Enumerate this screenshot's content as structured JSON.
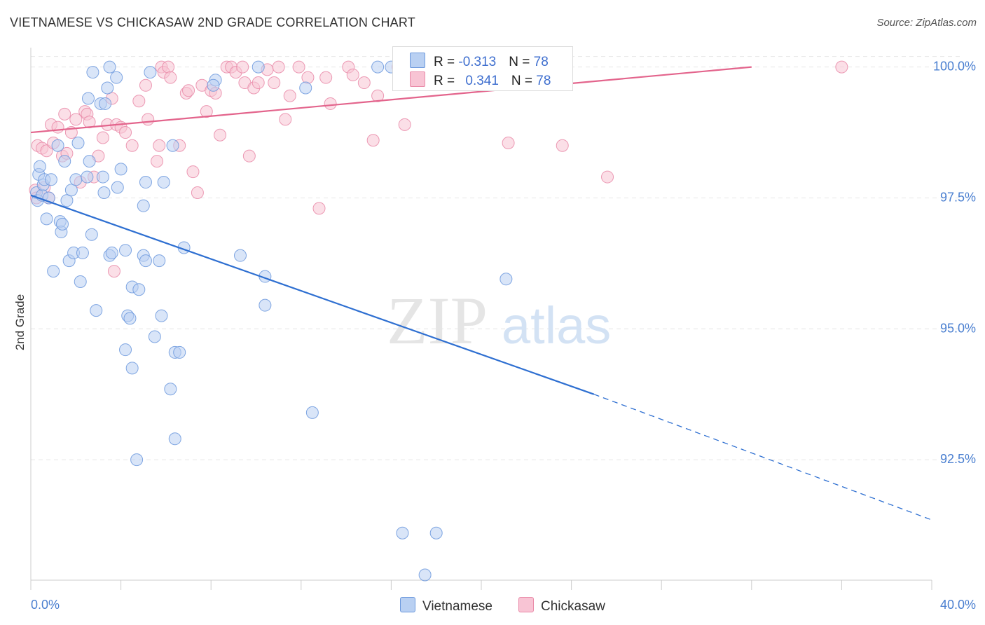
{
  "title": "VIETNAMESE VS CHICKASAW 2ND GRADE CORRELATION CHART",
  "source": "Source: ZipAtlas.com",
  "watermark": {
    "zip": "ZIP",
    "atlas": "atlas"
  },
  "colors": {
    "vietnamese_fill": "#b9d0f2",
    "vietnamese_stroke": "#6b98dd",
    "vietnamese_line": "#2e6fd1",
    "chickasaw_fill": "#f8c4d4",
    "chickasaw_stroke": "#e98aa8",
    "chickasaw_line": "#e3648c",
    "grid": "#e6e6e6",
    "tick_label": "#4a7fd0"
  },
  "legend": {
    "rows": [
      {
        "r_label": "R = ",
        "r_value": "-0.313",
        "n_label": "N = ",
        "n_value": "78"
      },
      {
        "r_label": "R = ",
        "r_value": "0.341",
        "n_label": "N = ",
        "n_value": "78"
      }
    ]
  },
  "bottom_legend": {
    "series1": "Vietnamese",
    "series2": "Chickasaw"
  },
  "chart_data": {
    "type": "scatter",
    "xlabel": "",
    "ylabel": "2nd Grade",
    "xlim": [
      0,
      40
    ],
    "ylim": [
      90.2,
      100.45
    ],
    "x_tick_labels": [
      "0.0%",
      "40.0%"
    ],
    "y_ticks": [
      92.5,
      95.0,
      97.5,
      100.0
    ],
    "y_tick_labels": [
      "92.5%",
      "95.0%",
      "97.5%",
      "100.0%"
    ],
    "grid": "horizontal dashed",
    "legend_position": "top-center",
    "series": [
      {
        "name": "Vietnamese",
        "points": [
          [
            0.25,
            97.6
          ],
          [
            0.3,
            97.45
          ],
          [
            0.35,
            97.95
          ],
          [
            0.5,
            97.55
          ],
          [
            0.55,
            97.75
          ],
          [
            0.4,
            98.1
          ],
          [
            0.6,
            97.85
          ],
          [
            0.7,
            97.1
          ],
          [
            0.8,
            97.5
          ],
          [
            0.9,
            97.85
          ],
          [
            1.0,
            96.1
          ],
          [
            1.2,
            98.5
          ],
          [
            1.3,
            97.05
          ],
          [
            1.35,
            96.85
          ],
          [
            1.4,
            97.0
          ],
          [
            1.5,
            98.2
          ],
          [
            1.6,
            97.45
          ],
          [
            1.7,
            96.3
          ],
          [
            1.8,
            97.65
          ],
          [
            1.9,
            96.45
          ],
          [
            2.0,
            97.85
          ],
          [
            2.1,
            98.55
          ],
          [
            2.2,
            95.9
          ],
          [
            2.3,
            96.45
          ],
          [
            2.5,
            97.9
          ],
          [
            2.55,
            99.4
          ],
          [
            2.6,
            98.2
          ],
          [
            2.7,
            96.8
          ],
          [
            2.75,
            99.9
          ],
          [
            2.9,
            95.35
          ],
          [
            3.1,
            99.3
          ],
          [
            3.2,
            97.9
          ],
          [
            3.25,
            97.6
          ],
          [
            3.3,
            99.3
          ],
          [
            3.5,
            96.4
          ],
          [
            3.4,
            99.6
          ],
          [
            3.5,
            100.0
          ],
          [
            3.6,
            96.45
          ],
          [
            3.8,
            99.8
          ],
          [
            3.85,
            97.7
          ],
          [
            4.0,
            98.05
          ],
          [
            4.2,
            94.6
          ],
          [
            4.2,
            96.5
          ],
          [
            4.3,
            95.25
          ],
          [
            4.4,
            95.2
          ],
          [
            4.5,
            95.8
          ],
          [
            4.5,
            94.25
          ],
          [
            4.7,
            92.5
          ],
          [
            4.8,
            95.75
          ],
          [
            5.0,
            97.35
          ],
          [
            5.0,
            96.4
          ],
          [
            5.1,
            96.3
          ],
          [
            5.3,
            99.9
          ],
          [
            5.1,
            97.8
          ],
          [
            5.5,
            94.85
          ],
          [
            5.7,
            96.3
          ],
          [
            5.8,
            95.25
          ],
          [
            5.9,
            97.8
          ],
          [
            6.2,
            93.85
          ],
          [
            6.3,
            98.5
          ],
          [
            6.4,
            92.9
          ],
          [
            6.4,
            94.55
          ],
          [
            6.6,
            94.55
          ],
          [
            6.8,
            96.55
          ],
          [
            8.2,
            99.75
          ],
          [
            8.1,
            99.65
          ],
          [
            9.3,
            96.4
          ],
          [
            10.1,
            100.0
          ],
          [
            10.4,
            96.0
          ],
          [
            10.4,
            95.45
          ],
          [
            12.2,
            99.6
          ],
          [
            12.5,
            93.4
          ],
          [
            15.4,
            100.0
          ],
          [
            16.0,
            100.0
          ],
          [
            16.5,
            91.1
          ],
          [
            17.5,
            90.3
          ],
          [
            18.0,
            91.1
          ],
          [
            21.1,
            95.95
          ]
        ]
      },
      {
        "name": "Chickasaw",
        "points": [
          [
            0.2,
            97.65
          ],
          [
            0.25,
            97.5
          ],
          [
            0.3,
            98.5
          ],
          [
            0.5,
            98.45
          ],
          [
            0.6,
            97.7
          ],
          [
            0.7,
            98.4
          ],
          [
            0.8,
            97.5
          ],
          [
            0.9,
            98.9
          ],
          [
            1.0,
            98.55
          ],
          [
            1.2,
            98.85
          ],
          [
            1.4,
            98.3
          ],
          [
            1.5,
            99.1
          ],
          [
            1.6,
            98.35
          ],
          [
            1.8,
            98.75
          ],
          [
            2.0,
            99.0
          ],
          [
            2.2,
            97.8
          ],
          [
            2.4,
            99.15
          ],
          [
            2.5,
            99.1
          ],
          [
            2.6,
            98.95
          ],
          [
            2.8,
            97.9
          ],
          [
            3.0,
            98.3
          ],
          [
            3.2,
            98.65
          ],
          [
            3.4,
            98.9
          ],
          [
            3.6,
            99.4
          ],
          [
            3.7,
            96.1
          ],
          [
            3.8,
            98.9
          ],
          [
            4.0,
            98.85
          ],
          [
            4.2,
            98.75
          ],
          [
            4.5,
            98.5
          ],
          [
            4.8,
            99.35
          ],
          [
            5.1,
            99.65
          ],
          [
            5.2,
            99.0
          ],
          [
            5.6,
            98.2
          ],
          [
            5.7,
            98.5
          ],
          [
            5.8,
            100.0
          ],
          [
            5.9,
            99.9
          ],
          [
            6.1,
            100.0
          ],
          [
            6.2,
            99.8
          ],
          [
            6.6,
            98.5
          ],
          [
            6.9,
            99.5
          ],
          [
            7.0,
            99.55
          ],
          [
            7.2,
            98.0
          ],
          [
            7.4,
            97.6
          ],
          [
            7.6,
            99.65
          ],
          [
            7.8,
            99.15
          ],
          [
            8.0,
            99.55
          ],
          [
            8.2,
            99.5
          ],
          [
            8.4,
            98.7
          ],
          [
            8.7,
            100.0
          ],
          [
            8.9,
            100.0
          ],
          [
            9.1,
            99.9
          ],
          [
            9.4,
            100.0
          ],
          [
            9.5,
            99.7
          ],
          [
            9.7,
            98.3
          ],
          [
            9.9,
            99.6
          ],
          [
            10.1,
            99.7
          ],
          [
            10.5,
            99.95
          ],
          [
            10.8,
            99.7
          ],
          [
            11.0,
            100.0
          ],
          [
            11.3,
            99.0
          ],
          [
            11.5,
            99.45
          ],
          [
            11.9,
            100.0
          ],
          [
            12.3,
            99.8
          ],
          [
            12.8,
            97.3
          ],
          [
            13.1,
            99.8
          ],
          [
            13.3,
            99.3
          ],
          [
            14.1,
            100.0
          ],
          [
            14.3,
            99.85
          ],
          [
            14.8,
            99.7
          ],
          [
            15.2,
            98.6
          ],
          [
            15.4,
            99.45
          ],
          [
            16.3,
            100.0
          ],
          [
            16.6,
            98.9
          ],
          [
            19.0,
            100.0
          ],
          [
            21.2,
            98.55
          ],
          [
            23.6,
            98.5
          ],
          [
            25.6,
            97.9
          ],
          [
            36.0,
            100.0
          ]
        ]
      }
    ],
    "trend_lines": [
      {
        "series": "Vietnamese",
        "x": [
          0,
          25
        ],
        "y": [
          97.55,
          93.75
        ],
        "dashed_extension_to_x": 40,
        "dashed_extension_y": 91.35
      },
      {
        "series": "Chickasaw",
        "x": [
          0,
          32
        ],
        "y": [
          98.75,
          100.0
        ]
      }
    ]
  }
}
